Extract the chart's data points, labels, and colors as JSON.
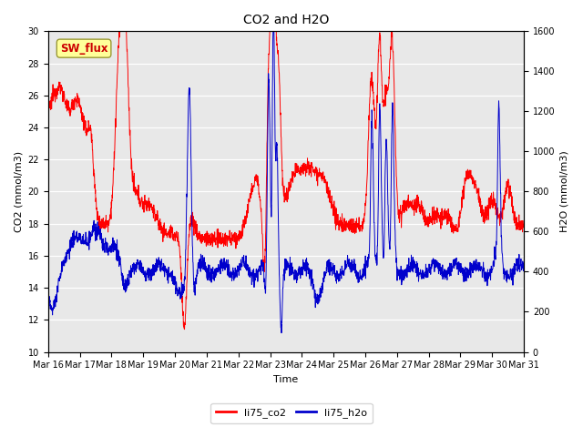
{
  "title": "CO2 and H2O",
  "xlabel": "Time",
  "ylabel_left": "CO2 (mmol/m3)",
  "ylabel_right": "H2O (mmol/m3)",
  "ylim_left": [
    10,
    30
  ],
  "ylim_right": [
    0,
    1600
  ],
  "yticks_left": [
    10,
    12,
    14,
    16,
    18,
    20,
    22,
    24,
    26,
    28,
    30
  ],
  "yticks_right": [
    0,
    200,
    400,
    600,
    800,
    1000,
    1200,
    1400,
    1600
  ],
  "xtick_labels": [
    "Mar 16",
    "Mar 17",
    "Mar 18",
    "Mar 19",
    "Mar 20",
    "Mar 21",
    "Mar 22",
    "Mar 23",
    "Mar 24",
    "Mar 25",
    "Mar 26",
    "Mar 27",
    "Mar 28",
    "Mar 29",
    "Mar 30",
    "Mar 31"
  ],
  "color_co2": "#FF0000",
  "color_h2o": "#0000CC",
  "bg_color": "#E8E8E8",
  "legend_label_co2": "li75_co2",
  "legend_label_h2o": "li75_h2o",
  "sw_flux_label": "SW_flux",
  "sw_flux_bg": "#FFFF99",
  "sw_flux_border": "#999933",
  "sw_flux_text_color": "#CC0000",
  "linewidth": 0.7,
  "title_fontsize": 10,
  "axis_fontsize": 8,
  "tick_fontsize": 7,
  "legend_fontsize": 8
}
